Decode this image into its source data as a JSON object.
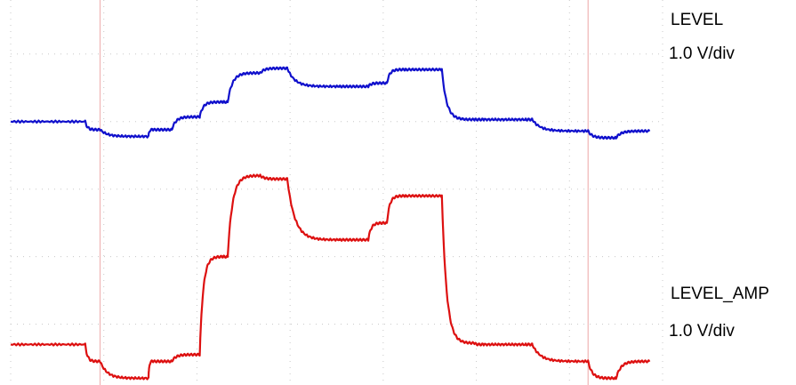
{
  "chart_data": {
    "type": "line",
    "grid": true,
    "x": [
      0,
      0.8,
      0.96,
      1.48,
      1.53,
      1.73,
      2.03,
      2.28,
      2.33,
      2.68,
      2.97,
      3.53,
      3.84,
      4.04,
      4.24,
      4.63,
      4.98,
      5.08,
      5.53,
      5.6,
      6.2,
      6.5,
      6.86
    ],
    "xlim": [
      0,
      7
    ],
    "ylim": [
      -3.9,
      1.8
    ],
    "markers_x": [
      0.96,
      6.2
    ],
    "series": [
      {
        "name": "LEVEL",
        "scale": "1.0 V/div",
        "color": "#1010cc",
        "values": [
          0,
          0,
          -0.12,
          -0.22,
          -0.12,
          -0.12,
          0.07,
          0.29,
          0.29,
          0.72,
          0.79,
          0.52,
          0.52,
          0.57,
          0.77,
          0.77,
          0.03,
          0.03,
          0.03,
          0.03,
          -0.14,
          -0.24,
          -0.14
        ]
      },
      {
        "name": "LEVEL_AMP",
        "scale": "1.0 V/div",
        "color": "#dd1010",
        "values": [
          -3.3,
          -3.3,
          -3.55,
          -3.8,
          -3.55,
          -3.55,
          -3.45,
          -2.0,
          -2.0,
          -0.8,
          -0.85,
          -1.75,
          -1.75,
          -1.5,
          -1.1,
          -1.1,
          -3.28,
          -3.3,
          -3.3,
          -3.3,
          -3.55,
          -3.8,
          -3.55
        ]
      }
    ]
  }
}
